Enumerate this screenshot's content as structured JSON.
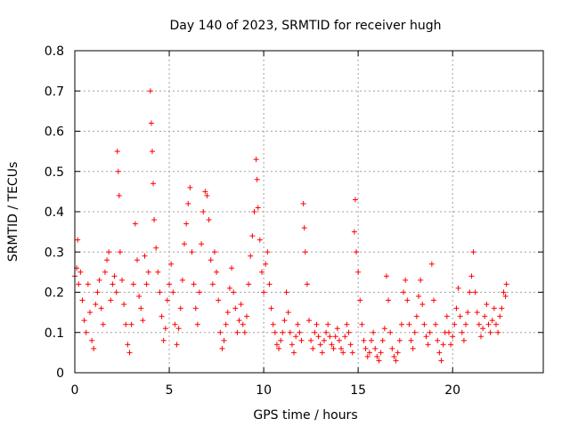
{
  "chart_data": {
    "type": "scatter",
    "title": "Day 140 of 2023, SRMTID for receiver hugh",
    "xlabel": "GPS time / hours",
    "ylabel": "SRMTID / TECUs",
    "xlim": [
      0,
      24.8
    ],
    "ylim": [
      0,
      0.8
    ],
    "xticks": [
      0,
      5,
      10,
      15,
      20
    ],
    "xtick_labels": [
      "0",
      "5",
      "10",
      "15",
      "20"
    ],
    "yticks": [
      0,
      0.1,
      0.2,
      0.3,
      0.4,
      0.5,
      0.6,
      0.7,
      0.8
    ],
    "ytick_labels": [
      "0",
      "0.1",
      "0.2",
      "0.3",
      "0.4",
      "0.5",
      "0.6",
      "0.7",
      "0.8"
    ],
    "grid": true,
    "marker": "plus",
    "color": "#ff0000",
    "series": [
      {
        "name": "SRMTID",
        "points": [
          [
            0.0,
            0.24
          ],
          [
            0.1,
            0.26
          ],
          [
            0.15,
            0.33
          ],
          [
            0.2,
            0.22
          ],
          [
            0.3,
            0.25
          ],
          [
            0.4,
            0.18
          ],
          [
            0.5,
            0.13
          ],
          [
            0.6,
            0.1
          ],
          [
            0.7,
            0.22
          ],
          [
            0.8,
            0.15
          ],
          [
            0.9,
            0.08
          ],
          [
            1.0,
            0.06
          ],
          [
            1.1,
            0.17
          ],
          [
            1.2,
            0.2
          ],
          [
            1.3,
            0.23
          ],
          [
            1.4,
            0.16
          ],
          [
            1.5,
            0.12
          ],
          [
            1.6,
            0.25
          ],
          [
            1.7,
            0.28
          ],
          [
            1.8,
            0.3
          ],
          [
            1.9,
            0.18
          ],
          [
            2.0,
            0.22
          ],
          [
            2.1,
            0.24
          ],
          [
            2.2,
            0.2
          ],
          [
            2.25,
            0.55
          ],
          [
            2.3,
            0.5
          ],
          [
            2.35,
            0.44
          ],
          [
            2.4,
            0.3
          ],
          [
            2.5,
            0.23
          ],
          [
            2.6,
            0.17
          ],
          [
            2.7,
            0.12
          ],
          [
            2.8,
            0.07
          ],
          [
            2.9,
            0.05
          ],
          [
            3.0,
            0.12
          ],
          [
            3.1,
            0.22
          ],
          [
            3.2,
            0.37
          ],
          [
            3.3,
            0.28
          ],
          [
            3.4,
            0.19
          ],
          [
            3.5,
            0.16
          ],
          [
            3.6,
            0.13
          ],
          [
            3.7,
            0.29
          ],
          [
            3.8,
            0.22
          ],
          [
            3.9,
            0.25
          ],
          [
            4.0,
            0.7
          ],
          [
            4.05,
            0.62
          ],
          [
            4.1,
            0.55
          ],
          [
            4.15,
            0.47
          ],
          [
            4.2,
            0.38
          ],
          [
            4.3,
            0.31
          ],
          [
            4.4,
            0.25
          ],
          [
            4.5,
            0.2
          ],
          [
            4.6,
            0.14
          ],
          [
            4.7,
            0.08
          ],
          [
            4.8,
            0.11
          ],
          [
            4.9,
            0.18
          ],
          [
            5.0,
            0.22
          ],
          [
            5.1,
            0.27
          ],
          [
            5.2,
            0.2
          ],
          [
            5.3,
            0.12
          ],
          [
            5.4,
            0.07
          ],
          [
            5.5,
            0.11
          ],
          [
            5.6,
            0.16
          ],
          [
            5.7,
            0.23
          ],
          [
            5.8,
            0.32
          ],
          [
            5.9,
            0.37
          ],
          [
            6.0,
            0.42
          ],
          [
            6.1,
            0.46
          ],
          [
            6.2,
            0.3
          ],
          [
            6.3,
            0.22
          ],
          [
            6.4,
            0.16
          ],
          [
            6.5,
            0.12
          ],
          [
            6.6,
            0.2
          ],
          [
            6.7,
            0.32
          ],
          [
            6.8,
            0.4
          ],
          [
            6.9,
            0.45
          ],
          [
            7.0,
            0.44
          ],
          [
            7.1,
            0.38
          ],
          [
            7.2,
            0.28
          ],
          [
            7.3,
            0.22
          ],
          [
            7.4,
            0.3
          ],
          [
            7.5,
            0.25
          ],
          [
            7.6,
            0.18
          ],
          [
            7.7,
            0.1
          ],
          [
            7.8,
            0.06
          ],
          [
            7.9,
            0.08
          ],
          [
            8.0,
            0.12
          ],
          [
            8.1,
            0.15
          ],
          [
            8.2,
            0.21
          ],
          [
            8.3,
            0.26
          ],
          [
            8.4,
            0.2
          ],
          [
            8.5,
            0.16
          ],
          [
            8.6,
            0.1
          ],
          [
            8.7,
            0.13
          ],
          [
            8.8,
            0.17
          ],
          [
            8.9,
            0.12
          ],
          [
            9.0,
            0.1
          ],
          [
            9.1,
            0.14
          ],
          [
            9.2,
            0.22
          ],
          [
            9.3,
            0.29
          ],
          [
            9.4,
            0.34
          ],
          [
            9.5,
            0.4
          ],
          [
            9.6,
            0.53
          ],
          [
            9.65,
            0.48
          ],
          [
            9.7,
            0.41
          ],
          [
            9.8,
            0.33
          ],
          [
            9.9,
            0.25
          ],
          [
            10.0,
            0.2
          ],
          [
            10.1,
            0.27
          ],
          [
            10.2,
            0.3
          ],
          [
            10.3,
            0.22
          ],
          [
            10.4,
            0.16
          ],
          [
            10.5,
            0.12
          ],
          [
            10.6,
            0.1
          ],
          [
            10.7,
            0.07
          ],
          [
            10.8,
            0.06
          ],
          [
            10.9,
            0.08
          ],
          [
            11.0,
            0.1
          ],
          [
            11.1,
            0.13
          ],
          [
            11.2,
            0.2
          ],
          [
            11.3,
            0.15
          ],
          [
            11.4,
            0.1
          ],
          [
            11.5,
            0.07
          ],
          [
            11.6,
            0.05
          ],
          [
            11.7,
            0.09
          ],
          [
            11.8,
            0.12
          ],
          [
            11.9,
            0.1
          ],
          [
            12.0,
            0.08
          ],
          [
            12.1,
            0.42
          ],
          [
            12.15,
            0.36
          ],
          [
            12.2,
            0.3
          ],
          [
            12.3,
            0.22
          ],
          [
            12.4,
            0.13
          ],
          [
            12.5,
            0.08
          ],
          [
            12.6,
            0.06
          ],
          [
            12.7,
            0.1
          ],
          [
            12.8,
            0.12
          ],
          [
            12.9,
            0.09
          ],
          [
            13.0,
            0.07
          ],
          [
            13.1,
            0.05
          ],
          [
            13.2,
            0.08
          ],
          [
            13.3,
            0.1
          ],
          [
            13.4,
            0.12
          ],
          [
            13.5,
            0.09
          ],
          [
            13.6,
            0.07
          ],
          [
            13.7,
            0.06
          ],
          [
            13.8,
            0.09
          ],
          [
            13.9,
            0.11
          ],
          [
            14.0,
            0.08
          ],
          [
            14.1,
            0.06
          ],
          [
            14.2,
            0.05
          ],
          [
            14.3,
            0.09
          ],
          [
            14.4,
            0.12
          ],
          [
            14.5,
            0.1
          ],
          [
            14.6,
            0.07
          ],
          [
            14.7,
            0.05
          ],
          [
            14.8,
            0.35
          ],
          [
            14.85,
            0.43
          ],
          [
            14.9,
            0.3
          ],
          [
            15.0,
            0.25
          ],
          [
            15.1,
            0.18
          ],
          [
            15.2,
            0.12
          ],
          [
            15.3,
            0.08
          ],
          [
            15.4,
            0.06
          ],
          [
            15.5,
            0.04
          ],
          [
            15.6,
            0.05
          ],
          [
            15.7,
            0.08
          ],
          [
            15.8,
            0.1
          ],
          [
            15.9,
            0.06
          ],
          [
            16.0,
            0.04
          ],
          [
            16.1,
            0.03
          ],
          [
            16.2,
            0.05
          ],
          [
            16.3,
            0.08
          ],
          [
            16.4,
            0.11
          ],
          [
            16.5,
            0.24
          ],
          [
            16.6,
            0.18
          ],
          [
            16.7,
            0.1
          ],
          [
            16.8,
            0.06
          ],
          [
            16.9,
            0.04
          ],
          [
            17.0,
            0.03
          ],
          [
            17.1,
            0.05
          ],
          [
            17.2,
            0.08
          ],
          [
            17.3,
            0.12
          ],
          [
            17.4,
            0.2
          ],
          [
            17.5,
            0.23
          ],
          [
            17.6,
            0.18
          ],
          [
            17.7,
            0.12
          ],
          [
            17.8,
            0.08
          ],
          [
            17.9,
            0.06
          ],
          [
            18.0,
            0.1
          ],
          [
            18.1,
            0.14
          ],
          [
            18.2,
            0.19
          ],
          [
            18.3,
            0.23
          ],
          [
            18.4,
            0.17
          ],
          [
            18.5,
            0.12
          ],
          [
            18.6,
            0.09
          ],
          [
            18.7,
            0.07
          ],
          [
            18.8,
            0.1
          ],
          [
            18.9,
            0.27
          ],
          [
            19.0,
            0.18
          ],
          [
            19.1,
            0.12
          ],
          [
            19.2,
            0.08
          ],
          [
            19.3,
            0.05
          ],
          [
            19.4,
            0.03
          ],
          [
            19.5,
            0.07
          ],
          [
            19.6,
            0.1
          ],
          [
            19.7,
            0.14
          ],
          [
            19.8,
            0.1
          ],
          [
            19.9,
            0.07
          ],
          [
            20.0,
            0.09
          ],
          [
            20.1,
            0.12
          ],
          [
            20.2,
            0.16
          ],
          [
            20.3,
            0.21
          ],
          [
            20.4,
            0.14
          ],
          [
            20.5,
            0.1
          ],
          [
            20.6,
            0.08
          ],
          [
            20.7,
            0.12
          ],
          [
            20.8,
            0.15
          ],
          [
            20.9,
            0.2
          ],
          [
            21.0,
            0.24
          ],
          [
            21.1,
            0.3
          ],
          [
            21.2,
            0.2
          ],
          [
            21.3,
            0.15
          ],
          [
            21.4,
            0.12
          ],
          [
            21.5,
            0.09
          ],
          [
            21.6,
            0.11
          ],
          [
            21.7,
            0.14
          ],
          [
            21.8,
            0.17
          ],
          [
            21.9,
            0.12
          ],
          [
            22.0,
            0.1
          ],
          [
            22.1,
            0.13
          ],
          [
            22.2,
            0.16
          ],
          [
            22.3,
            0.12
          ],
          [
            22.4,
            0.1
          ],
          [
            22.5,
            0.14
          ],
          [
            22.6,
            0.16
          ],
          [
            22.7,
            0.2
          ],
          [
            22.8,
            0.19
          ],
          [
            22.85,
            0.22
          ]
        ]
      }
    ]
  }
}
